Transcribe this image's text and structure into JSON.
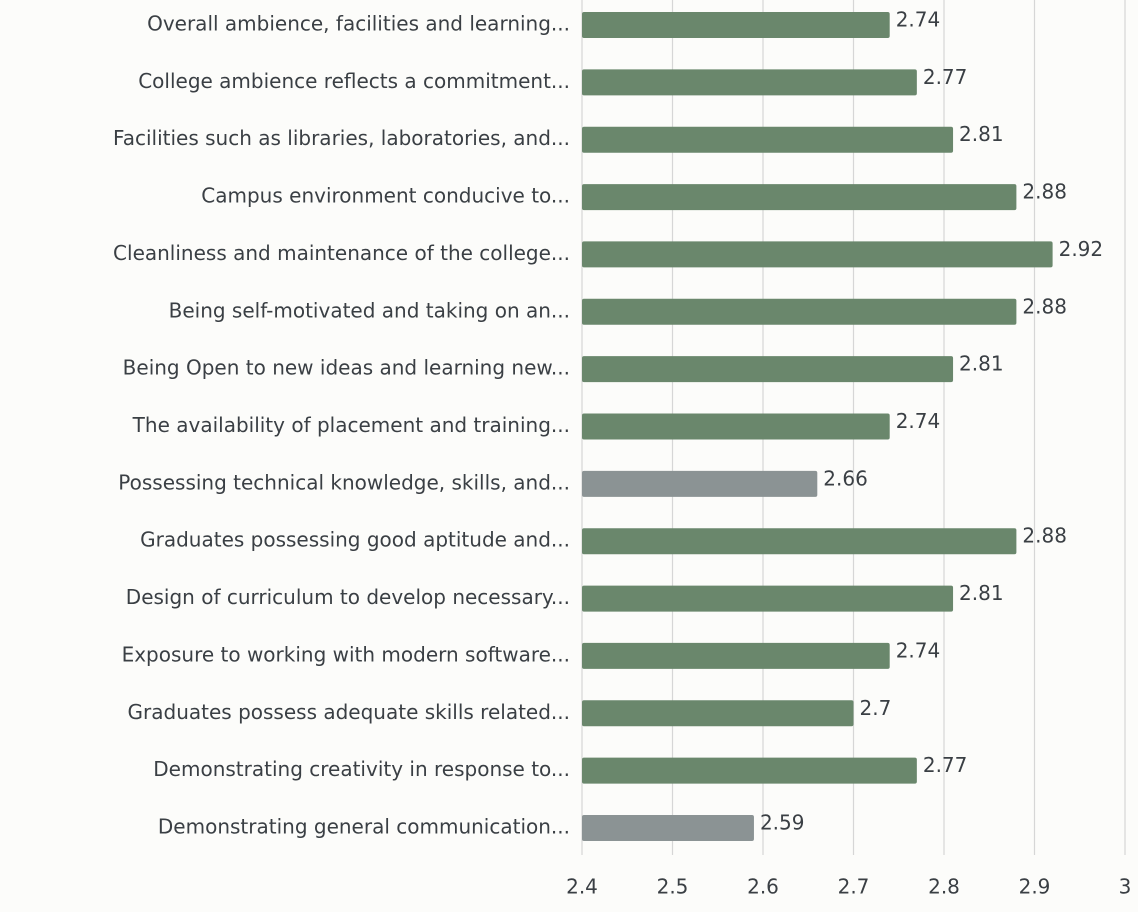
{
  "chart_data": {
    "type": "barh",
    "categories": [
      "Overall ambience, facilities and learning...",
      "College ambience reflects a commitment...",
      "Facilities such as libraries, laboratories, and...",
      "Campus environment conducive to...",
      "Cleanliness and maintenance of the college...",
      "Being self-motivated and taking on an...",
      "Being Open to new ideas and learning new...",
      "The availability of placement and training...",
      "Possessing technical knowledge, skills, and...",
      "Graduates possessing good aptitude and...",
      "Design of curriculum to develop necessary...",
      "Exposure to working with modern software...",
      "Graduates possess adequate skills related...",
      "Demonstrating creativity in response to...",
      "Demonstrating general communication..."
    ],
    "values": [
      2.74,
      2.77,
      2.81,
      2.88,
      2.92,
      2.88,
      2.81,
      2.74,
      2.66,
      2.88,
      2.81,
      2.74,
      2.7,
      2.77,
      2.59
    ],
    "colors": [
      "#6a876c",
      "#6a876c",
      "#6a876c",
      "#6a876c",
      "#6a876c",
      "#6a876c",
      "#6a876c",
      "#6a876c",
      "#8b9394",
      "#6a876c",
      "#6a876c",
      "#6a876c",
      "#6a876c",
      "#6a876c",
      "#8b9394"
    ],
    "xlim": [
      2.4,
      3
    ],
    "xticks": [
      2.4,
      2.5,
      2.6,
      2.7,
      2.8,
      2.9,
      3
    ],
    "grid": true
  }
}
